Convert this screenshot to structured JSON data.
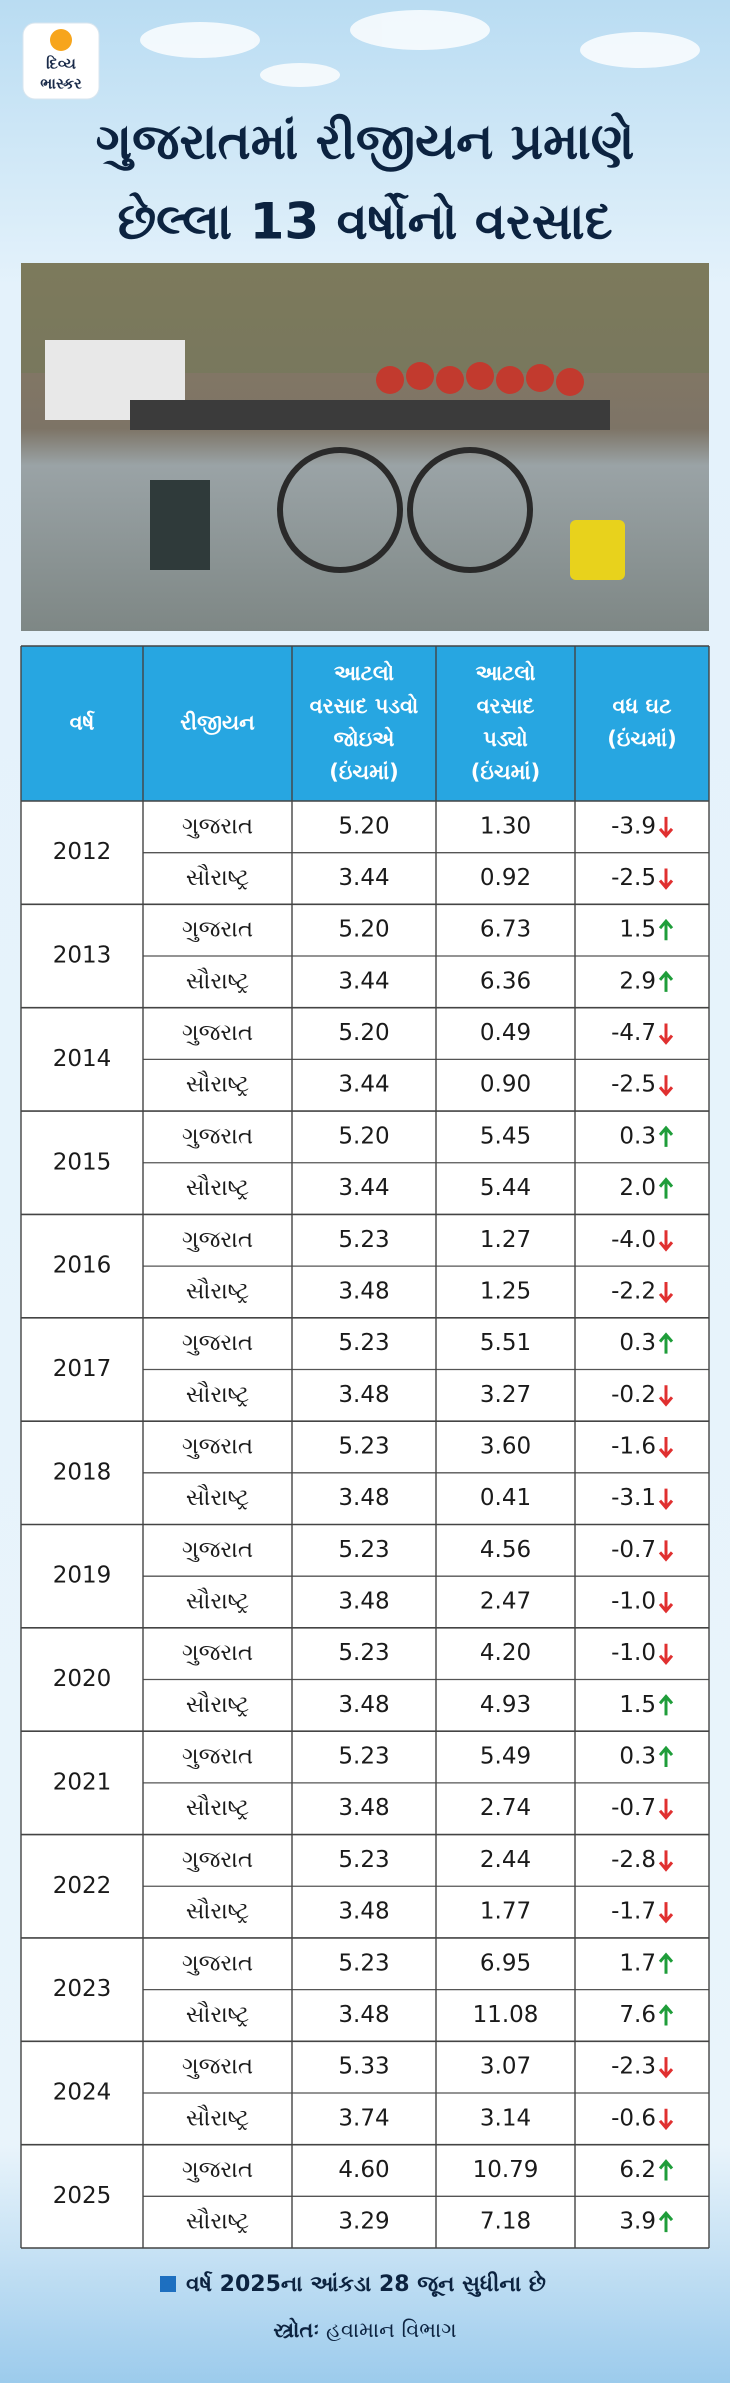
{
  "header": {
    "logo": [
      "દિવ્ય",
      "ભાસ્કર"
    ],
    "title": [
      "ગુજરાતમાં રીજીયન પ્રમાણે",
      "છેલ્લા 13 વર્ષોનો વરસાદ"
    ]
  },
  "table": {
    "header": [
      [
        "વર્ષ"
      ],
      [
        "રીજીયન"
      ],
      [
        "આટલો",
        "વરસાદ પડવો",
        "જોઇએ",
        "(ઇંચમાં)"
      ],
      [
        "આટલો",
        "વરસાદ",
        "પડ્યો",
        "(ઇંચમાં)"
      ],
      [
        "વધ ઘટ",
        "(ઇંચમાં)"
      ]
    ],
    "groups": [
      {
        "year": "2012",
        "rows": [
          [
            "ગુજરાત",
            "5.20",
            "1.30",
            "-3.9"
          ],
          [
            "સૌરાષ્ટ્ર",
            "3.44",
            "0.92",
            "-2.5"
          ]
        ]
      },
      {
        "year": "2013",
        "rows": [
          [
            "ગુજરાત",
            "5.20",
            "6.73",
            "1.5"
          ],
          [
            "સૌરાષ્ટ્ર",
            "3.44",
            "6.36",
            "2.9"
          ]
        ]
      },
      {
        "year": "2014",
        "rows": [
          [
            "ગુજરાત",
            "5.20",
            "0.49",
            "-4.7"
          ],
          [
            "સૌરાષ્ટ્ર",
            "3.44",
            "0.90",
            "-2.5"
          ]
        ]
      },
      {
        "year": "2015",
        "rows": [
          [
            "ગુજરાત",
            "5.20",
            "5.45",
            "0.3"
          ],
          [
            "સૌરાષ્ટ્ર",
            "3.44",
            "5.44",
            "2.0"
          ]
        ]
      },
      {
        "year": "2016",
        "rows": [
          [
            "ગુજરાત",
            "5.23",
            "1.27",
            "-4.0"
          ],
          [
            "સૌરાષ્ટ્ર",
            "3.48",
            "1.25",
            "-2.2"
          ]
        ]
      },
      {
        "year": "2017",
        "rows": [
          [
            "ગુજરાત",
            "5.23",
            "5.51",
            "0.3"
          ],
          [
            "સૌરાષ્ટ્ર",
            "3.48",
            "3.27",
            "-0.2"
          ]
        ]
      },
      {
        "year": "2018",
        "rows": [
          [
            "ગુજરાત",
            "5.23",
            "3.60",
            "-1.6"
          ],
          [
            "સૌરાષ્ટ્ર",
            "3.48",
            "0.41",
            "-3.1"
          ]
        ]
      },
      {
        "year": "2019",
        "rows": [
          [
            "ગુજરાત",
            "5.23",
            "4.56",
            "-0.7"
          ],
          [
            "સૌરાષ્ટ્ર",
            "3.48",
            "2.47",
            "-1.0"
          ]
        ]
      },
      {
        "year": "2020",
        "rows": [
          [
            "ગુજરાત",
            "5.23",
            "4.20",
            "-1.0"
          ],
          [
            "સૌરાષ્ટ્ર",
            "3.48",
            "4.93",
            "1.5"
          ]
        ]
      },
      {
        "year": "2021",
        "rows": [
          [
            "ગુજરાત",
            "5.23",
            "5.49",
            "0.3"
          ],
          [
            "સૌરાષ્ટ્ર",
            "3.48",
            "2.74",
            "-0.7"
          ]
        ]
      },
      {
        "year": "2022",
        "rows": [
          [
            "ગુજરાત",
            "5.23",
            "2.44",
            "-2.8"
          ],
          [
            "સૌરાષ્ટ્ર",
            "3.48",
            "1.77",
            "-1.7"
          ]
        ]
      },
      {
        "year": "2023",
        "rows": [
          [
            "ગુજરાત",
            "5.23",
            "6.95",
            "1.7"
          ],
          [
            "સૌરાષ્ટ્ર",
            "3.48",
            "11.08",
            "7.6"
          ]
        ]
      },
      {
        "year": "2024",
        "rows": [
          [
            "ગુજરાત",
            "5.33",
            "3.07",
            "-2.3"
          ],
          [
            "સૌરાષ્ટ્ર",
            "3.74",
            "3.14",
            "-0.6"
          ]
        ]
      },
      {
        "year": "2025",
        "rows": [
          [
            "ગુજરાત",
            "4.60",
            "10.79",
            "6.2"
          ],
          [
            "સૌરાષ્ટ્ર",
            "3.29",
            "7.18",
            "3.9"
          ]
        ]
      }
    ]
  },
  "footer": {
    "note": "વર્ષ 2025ના આંકડા 28 જૂન સુધીના છે",
    "source_label": "સ્ત્રોતઃ",
    "source": "હવામાન વિભાગ"
  }
}
